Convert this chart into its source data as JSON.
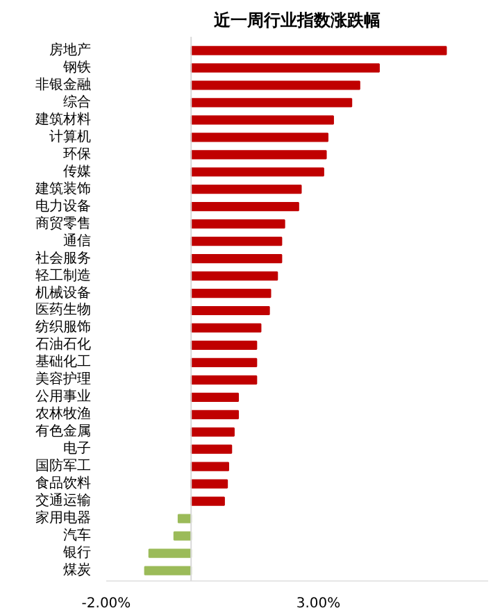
{
  "chart_data": {
    "type": "bar",
    "orientation": "horizontal",
    "title": "近一周行业指数涨跌幅",
    "categories": [
      "房地产",
      "钢铁",
      "非银金融",
      "综合",
      "建筑材料",
      "计算机",
      "环保",
      "传媒",
      "建筑装饰",
      "电力设备",
      "商贸零售",
      "通信",
      "社会服务",
      "轻工制造",
      "机械设备",
      "医药生物",
      "纺织服饰",
      "石油石化",
      "基础化工",
      "美容护理",
      "公用事业",
      "农林牧渔",
      "有色金属",
      "电子",
      "国防军工",
      "食品饮料",
      "交通运输",
      "家用电器",
      "汽车",
      "银行",
      "煤炭"
    ],
    "values": [
      6.01,
      4.43,
      3.97,
      3.78,
      3.35,
      3.22,
      3.18,
      3.12,
      2.59,
      2.53,
      2.2,
      2.13,
      2.13,
      2.03,
      1.87,
      1.84,
      1.64,
      1.54,
      1.54,
      1.54,
      1.11,
      1.11,
      1.01,
      0.95,
      0.88,
      0.85,
      0.78,
      -0.3,
      -0.4,
      -0.99,
      -1.09
    ],
    "colors": [
      "#c00000",
      "#c00000",
      "#c00000",
      "#c00000",
      "#c00000",
      "#c00000",
      "#c00000",
      "#c00000",
      "#c00000",
      "#c00000",
      "#c00000",
      "#c00000",
      "#c00000",
      "#c00000",
      "#c00000",
      "#c00000",
      "#c00000",
      "#c00000",
      "#c00000",
      "#c00000",
      "#c00000",
      "#c00000",
      "#c00000",
      "#c00000",
      "#c00000",
      "#c00000",
      "#c00000",
      "#9bbb59",
      "#9bbb59",
      "#9bbb59",
      "#9bbb59"
    ],
    "xticks": [
      {
        "value": -2,
        "label": "-2.00%"
      },
      {
        "value": 3,
        "label": "3.00%"
      }
    ],
    "xlim": [
      -2,
      7
    ],
    "grid": false
  }
}
